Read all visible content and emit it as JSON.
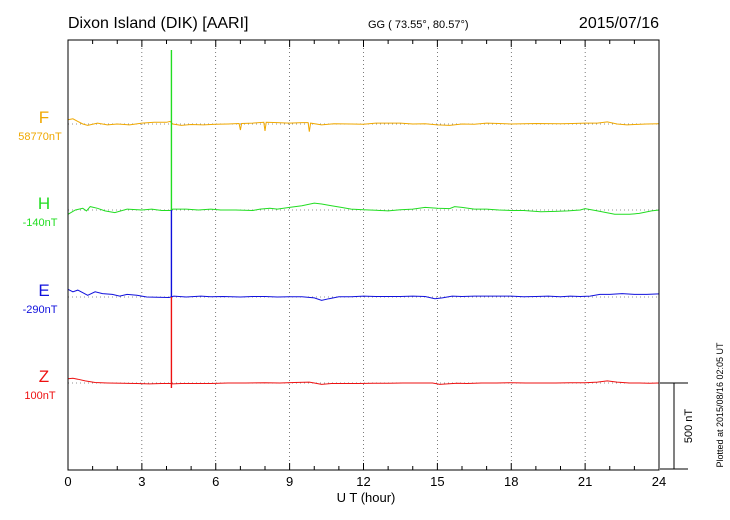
{
  "header": {
    "station": "Dixon Island (DIK)  [AARI]",
    "coords": "GG ( 73.55°,  80.57°)",
    "date": "2015/07/16"
  },
  "side_note": "Plotted at 2015/08/16 02:05 UT",
  "colors": {
    "F": "#f0a800",
    "H": "#22dd22",
    "E": "#1010dd",
    "Z": "#ee1111",
    "axis": "#000000"
  },
  "chart_data": {
    "type": "line",
    "xlabel": "U T (hour)",
    "xlim": [
      0,
      24
    ],
    "xticks": [
      0,
      3,
      6,
      9,
      12,
      15,
      18,
      21,
      24
    ],
    "scale_bar": {
      "label": "500 nT",
      "value_nT": 500
    },
    "series": [
      {
        "name": "F",
        "baseline": "58770nT",
        "color": "#f0a800",
        "points": [
          [
            0,
            -25
          ],
          [
            0.2,
            -30
          ],
          [
            0.4,
            -15
          ],
          [
            0.6,
            0
          ],
          [
            0.8,
            8
          ],
          [
            1.2,
            -5
          ],
          [
            1.6,
            5
          ],
          [
            2,
            0
          ],
          [
            2.5,
            5
          ],
          [
            3,
            -5
          ],
          [
            3.5,
            -10
          ],
          [
            4,
            -10
          ],
          [
            4.15,
            -15
          ],
          [
            4.25,
            0
          ],
          [
            4.6,
            8
          ],
          [
            5,
            3
          ],
          [
            5.5,
            5
          ],
          [
            6,
            2
          ],
          [
            6.5,
            0
          ],
          [
            6.95,
            -3
          ],
          [
            7.0,
            35
          ],
          [
            7.05,
            -3
          ],
          [
            7.5,
            -5
          ],
          [
            7.95,
            -10
          ],
          [
            8.0,
            40
          ],
          [
            8.05,
            -10
          ],
          [
            8.5,
            -8
          ],
          [
            9,
            -5
          ],
          [
            9.5,
            -8
          ],
          [
            9.75,
            -8
          ],
          [
            9.8,
            45
          ],
          [
            9.85,
            -5
          ],
          [
            10.3,
            5
          ],
          [
            10.8,
            -2
          ],
          [
            11.5,
            0
          ],
          [
            12,
            2
          ],
          [
            12.5,
            -5
          ],
          [
            13,
            -5
          ],
          [
            13.5,
            -5
          ],
          [
            14,
            0
          ],
          [
            14.5,
            -2
          ],
          [
            15,
            5
          ],
          [
            15.5,
            8
          ],
          [
            16,
            0
          ],
          [
            16.5,
            2
          ],
          [
            17,
            -5
          ],
          [
            17.5,
            -3
          ],
          [
            18,
            0
          ],
          [
            19,
            -3
          ],
          [
            20,
            -2
          ],
          [
            20.5,
            -3
          ],
          [
            21,
            -5
          ],
          [
            21.5,
            -5
          ],
          [
            21.9,
            -12
          ],
          [
            22.3,
            0
          ],
          [
            22.7,
            5
          ],
          [
            23,
            3
          ],
          [
            23.5,
            0
          ],
          [
            24,
            -2
          ]
        ]
      },
      {
        "name": "H",
        "baseline": "-140nT",
        "color": "#22dd22",
        "points": [
          [
            0,
            25
          ],
          [
            0.3,
            0
          ],
          [
            0.6,
            -10
          ],
          [
            0.75,
            5
          ],
          [
            0.9,
            -20
          ],
          [
            1.2,
            -10
          ],
          [
            1.5,
            5
          ],
          [
            1.9,
            15
          ],
          [
            2.4,
            -5
          ],
          [
            3,
            0
          ],
          [
            3.4,
            -5
          ],
          [
            3.8,
            3
          ],
          [
            4.15,
            3
          ],
          [
            4.25,
            -5
          ],
          [
            4.8,
            -5
          ],
          [
            5.3,
            0
          ],
          [
            5.8,
            -5
          ],
          [
            6.2,
            0
          ],
          [
            6.8,
            0
          ],
          [
            7.5,
            3
          ],
          [
            7.8,
            -5
          ],
          [
            8.2,
            -10
          ],
          [
            8.5,
            -5
          ],
          [
            9,
            -15
          ],
          [
            9.5,
            -25
          ],
          [
            10,
            -40
          ],
          [
            10.3,
            -35
          ],
          [
            10.7,
            -25
          ],
          [
            11.1,
            -15
          ],
          [
            11.5,
            -5
          ],
          [
            12,
            -2
          ],
          [
            12.5,
            2
          ],
          [
            13,
            5
          ],
          [
            13.5,
            -2
          ],
          [
            14,
            -5
          ],
          [
            14.5,
            -15
          ],
          [
            15,
            -10
          ],
          [
            15.5,
            -8
          ],
          [
            15.7,
            -20
          ],
          [
            16,
            -15
          ],
          [
            16.5,
            -5
          ],
          [
            17,
            -5
          ],
          [
            17.5,
            0
          ],
          [
            18,
            3
          ],
          [
            18.5,
            3
          ],
          [
            19.2,
            10
          ],
          [
            19.8,
            8
          ],
          [
            20.3,
            5
          ],
          [
            20.8,
            0
          ],
          [
            21,
            -8
          ],
          [
            21.5,
            5
          ],
          [
            22.2,
            25
          ],
          [
            22.8,
            25
          ],
          [
            23.2,
            20
          ],
          [
            23.7,
            5
          ],
          [
            24,
            0
          ]
        ]
      },
      {
        "name": "E",
        "baseline": "-290nT",
        "color": "#1010dd",
        "points": [
          [
            0,
            -45
          ],
          [
            0.2,
            -30
          ],
          [
            0.4,
            -40
          ],
          [
            0.6,
            -25
          ],
          [
            0.8,
            -10
          ],
          [
            1.1,
            -30
          ],
          [
            1.4,
            -20
          ],
          [
            1.8,
            -15
          ],
          [
            2.1,
            -5
          ],
          [
            2.4,
            -15
          ],
          [
            2.8,
            -10
          ],
          [
            3.2,
            0
          ],
          [
            3.6,
            2
          ],
          [
            4.1,
            3
          ],
          [
            4.3,
            -5
          ],
          [
            4.8,
            0
          ],
          [
            5.4,
            -5
          ],
          [
            5.8,
            -2
          ],
          [
            6.3,
            -3
          ],
          [
            7,
            0
          ],
          [
            7.5,
            -3
          ],
          [
            8,
            -3
          ],
          [
            8.5,
            0
          ],
          [
            9,
            -2
          ],
          [
            9.5,
            -2
          ],
          [
            10,
            5
          ],
          [
            10.3,
            20
          ],
          [
            10.6,
            10
          ],
          [
            11,
            -2
          ],
          [
            11.5,
            -2
          ],
          [
            12,
            -5
          ],
          [
            12.5,
            -3
          ],
          [
            13,
            -3
          ],
          [
            13.5,
            -3
          ],
          [
            14,
            -5
          ],
          [
            14.5,
            -3
          ],
          [
            14.9,
            10
          ],
          [
            15.2,
            5
          ],
          [
            15.6,
            -5
          ],
          [
            16,
            -3
          ],
          [
            16.5,
            -5
          ],
          [
            17,
            -5
          ],
          [
            17.5,
            -5
          ],
          [
            18,
            -5
          ],
          [
            18.5,
            -2
          ],
          [
            19,
            -3
          ],
          [
            19.5,
            -5
          ],
          [
            20,
            -2
          ],
          [
            20.4,
            -5
          ],
          [
            20.8,
            -3
          ],
          [
            21.2,
            -5
          ],
          [
            21.6,
            -15
          ],
          [
            22,
            -15
          ],
          [
            22.5,
            -20
          ],
          [
            23,
            -15
          ],
          [
            23.5,
            -15
          ],
          [
            24,
            -18
          ]
        ]
      },
      {
        "name": "Z",
        "baseline": "100nT",
        "color": "#ee1111",
        "points": [
          [
            0,
            -25
          ],
          [
            0.2,
            -28
          ],
          [
            0.4,
            -22
          ],
          [
            0.7,
            -12
          ],
          [
            1.1,
            -3
          ],
          [
            1.6,
            0
          ],
          [
            2.2,
            2
          ],
          [
            2.8,
            3
          ],
          [
            3.3,
            5
          ],
          [
            3.8,
            3
          ],
          [
            4.15,
            3
          ],
          [
            4.25,
            5
          ],
          [
            4.6,
            3
          ],
          [
            5.2,
            3
          ],
          [
            5.8,
            3
          ],
          [
            6.5,
            0
          ],
          [
            7.2,
            0
          ],
          [
            8,
            -2
          ],
          [
            8.6,
            0
          ],
          [
            9.2,
            -3
          ],
          [
            9.8,
            -5
          ],
          [
            10,
            0
          ],
          [
            10.3,
            8
          ],
          [
            10.7,
            3
          ],
          [
            11.2,
            3
          ],
          [
            11.8,
            3
          ],
          [
            12.4,
            2
          ],
          [
            13,
            2
          ],
          [
            13.6,
            0
          ],
          [
            14.2,
            0
          ],
          [
            14.8,
            0
          ],
          [
            15.1,
            8
          ],
          [
            15.4,
            5
          ],
          [
            15.8,
            2
          ],
          [
            16.2,
            3
          ],
          [
            16.8,
            0
          ],
          [
            17.4,
            0
          ],
          [
            18,
            -2
          ],
          [
            18.6,
            0
          ],
          [
            19.2,
            0
          ],
          [
            19.8,
            0
          ],
          [
            20.4,
            -2
          ],
          [
            21,
            -2
          ],
          [
            21.5,
            -5
          ],
          [
            21.9,
            -12
          ],
          [
            22.3,
            -5
          ],
          [
            22.8,
            0
          ],
          [
            23.2,
            0
          ],
          [
            23.6,
            2
          ],
          [
            24,
            0
          ]
        ]
      }
    ],
    "spike": {
      "x": 4.2,
      "color_top": "#22dd22",
      "color_mid": "#1010dd",
      "color_bottom": "#ee1111"
    }
  }
}
